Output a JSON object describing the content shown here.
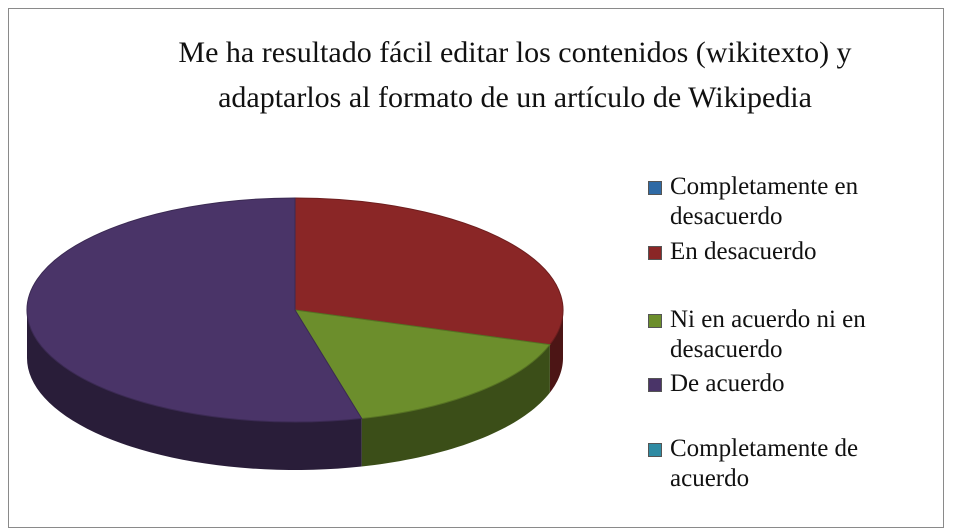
{
  "chart_data": {
    "type": "pie",
    "title": "Me ha resultado fácil editar los contenidos (wikitexto) y adaptarlos al formato de un artículo de Wikipedia",
    "categories": [
      "Completamente en desacuerdo",
      "En desacuerdo",
      "Ni en acuerdo ni en desacuerdo",
      "De acuerdo",
      "Completamente de acuerdo"
    ],
    "values": [
      0,
      30,
      16,
      54,
      0
    ],
    "colors": [
      "#2f6aa5",
      "#8a2626",
      "#6c8e2c",
      "#4a3468",
      "#2f8ba3"
    ],
    "legend": "right"
  }
}
